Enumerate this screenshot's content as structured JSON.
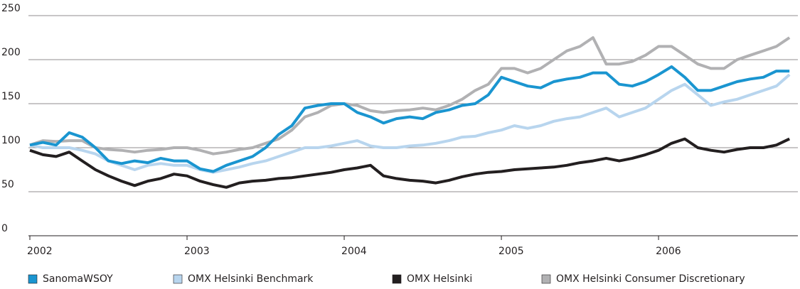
{
  "chart_data": {
    "type": "line",
    "x": [
      2002,
      2002.083,
      2002.167,
      2002.25,
      2002.333,
      2002.417,
      2002.5,
      2002.583,
      2002.667,
      2002.75,
      2002.833,
      2002.917,
      2003,
      2003.083,
      2003.167,
      2003.25,
      2003.333,
      2003.417,
      2003.5,
      2003.583,
      2003.667,
      2003.75,
      2003.833,
      2003.917,
      2004,
      2004.083,
      2004.167,
      2004.25,
      2004.333,
      2004.417,
      2004.5,
      2004.583,
      2004.667,
      2004.75,
      2004.833,
      2004.917,
      2005,
      2005.083,
      2005.167,
      2005.25,
      2005.333,
      2005.417,
      2005.5,
      2005.583,
      2005.667,
      2005.75,
      2005.833,
      2005.917,
      2006,
      2006.083,
      2006.167,
      2006.25,
      2006.333,
      2006.417,
      2006.5,
      2006.583,
      2006.667,
      2006.75,
      2006.833
    ],
    "series": [
      {
        "name": "SanomaWSOY",
        "color": "#1a95d0",
        "values": [
          103,
          106,
          103,
          117,
          112,
          100,
          85,
          82,
          85,
          83,
          88,
          85,
          85,
          76,
          73,
          80,
          85,
          90,
          100,
          115,
          125,
          145,
          148,
          150,
          150,
          140,
          135,
          128,
          133,
          135,
          133,
          140,
          143,
          148,
          150,
          160,
          180,
          175,
          170,
          168,
          175,
          178,
          180,
          185,
          185,
          172,
          170,
          175,
          183,
          192,
          180,
          165,
          165,
          170,
          175,
          178,
          180,
          187,
          187
        ]
      },
      {
        "name": "OMX Helsinki Benchmark",
        "color": "#b8d5ee",
        "values": [
          103,
          100,
          100,
          100,
          97,
          93,
          85,
          80,
          75,
          80,
          82,
          80,
          80,
          75,
          72,
          75,
          78,
          82,
          85,
          90,
          95,
          100,
          100,
          102,
          105,
          108,
          102,
          100,
          100,
          102,
          103,
          105,
          108,
          112,
          113,
          117,
          120,
          125,
          122,
          125,
          130,
          133,
          135,
          140,
          145,
          135,
          140,
          145,
          155,
          165,
          172,
          160,
          148,
          152,
          155,
          160,
          165,
          170,
          183
        ]
      },
      {
        "name": "OMX Helsinki",
        "color": "#231f20",
        "values": [
          97,
          92,
          90,
          95,
          85,
          75,
          68,
          62,
          57,
          62,
          65,
          70,
          68,
          62,
          58,
          55,
          60,
          62,
          63,
          65,
          66,
          68,
          70,
          72,
          75,
          77,
          80,
          68,
          65,
          63,
          62,
          60,
          63,
          67,
          70,
          72,
          73,
          75,
          76,
          77,
          78,
          80,
          83,
          85,
          88,
          85,
          88,
          92,
          97,
          105,
          110,
          100,
          97,
          95,
          98,
          100,
          100,
          103,
          110
        ]
      },
      {
        "name": "OMX Helsinki Consumer Discretionary",
        "color": "#b1b1b3",
        "values": [
          103,
          108,
          107,
          108,
          108,
          100,
          98,
          97,
          95,
          97,
          98,
          100,
          100,
          97,
          93,
          95,
          98,
          100,
          105,
          110,
          120,
          135,
          140,
          148,
          150,
          148,
          142,
          140,
          142,
          143,
          145,
          143,
          148,
          155,
          165,
          172,
          190,
          190,
          185,
          190,
          200,
          210,
          215,
          225,
          195,
          195,
          198,
          205,
          215,
          215,
          205,
          195,
          190,
          190,
          200,
          205,
          210,
          215,
          225
        ]
      }
    ],
    "xlim": [
      2002,
      2006.9
    ],
    "xticks": [
      2002,
      2003,
      2004,
      2005,
      2006
    ],
    "ylim": [
      0,
      250
    ],
    "yticks": [
      0,
      50,
      100,
      150,
      200,
      250
    ],
    "grid": true,
    "legend": "bottom"
  }
}
